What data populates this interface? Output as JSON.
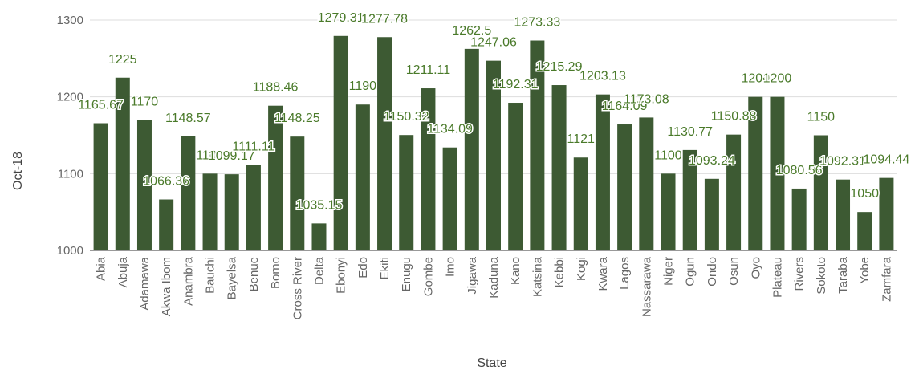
{
  "chart_data": {
    "type": "bar",
    "title": "",
    "xlabel": "State",
    "ylabel": "Oct-18",
    "ylim": [
      1000,
      1300
    ],
    "yticks": [
      1000,
      1100,
      1200,
      1300
    ],
    "grid": true,
    "bar_color": "#3d5a33",
    "label_color": "#4a7a2a",
    "categories": [
      "Abia",
      "Abuja",
      "Adamawa",
      "Akwa Ibom",
      "Anambra",
      "Bauchi",
      "Bayelsa",
      "Benue",
      "Borno",
      "Cross River",
      "Delta",
      "Ebonyi",
      "Edo",
      "Ekiti",
      "Enugu",
      "Gombe",
      "Imo",
      "Jigawa",
      "Kaduna",
      "Kano",
      "Katsina",
      "Kebbi",
      "Kogi",
      "Kwara",
      "Lagos",
      "Nassarawa",
      "Niger",
      "Ogun",
      "Ondo",
      "Osun",
      "Oyo",
      "Plateau",
      "Rivers",
      "Sokoto",
      "Taraba",
      "Yobe",
      "Zamfara"
    ],
    "values": [
      1165.67,
      1225,
      1170,
      1066.36,
      1148.57,
      1100,
      1099.17,
      1111.11,
      1188.46,
      1148.25,
      1035.15,
      1279.31,
      1190,
      1277.78,
      1150.32,
      1211.11,
      1134.09,
      1262.5,
      1247.06,
      1192.31,
      1273.33,
      1215.29,
      1121,
      1203.13,
      1164.09,
      1173.08,
      1100,
      1130.77,
      1093.24,
      1150.88,
      1200,
      1200,
      1080.56,
      1150,
      1092.31,
      1050,
      1094.44
    ],
    "data_labels": [
      "1165.67",
      "1225",
      "1170",
      "1066.36",
      "1148.57",
      "1100",
      "1099.17",
      "1111.11",
      "1188.46",
      "1148.25",
      "1035.15",
      "1279.31",
      "1190",
      "1277.78",
      "1150.32",
      "1211.11",
      "1134.09",
      "1262.5",
      "1247.06",
      "1192.31",
      "1273.33",
      "1215.29",
      "1121",
      "1203.13",
      "1164.09",
      "1173.08",
      "1100",
      "1130.77",
      "1093.24",
      "1150.88",
      "1200",
      "1200",
      "1080.56",
      "1150",
      "1092.31",
      "1050",
      "1094.44"
    ]
  }
}
